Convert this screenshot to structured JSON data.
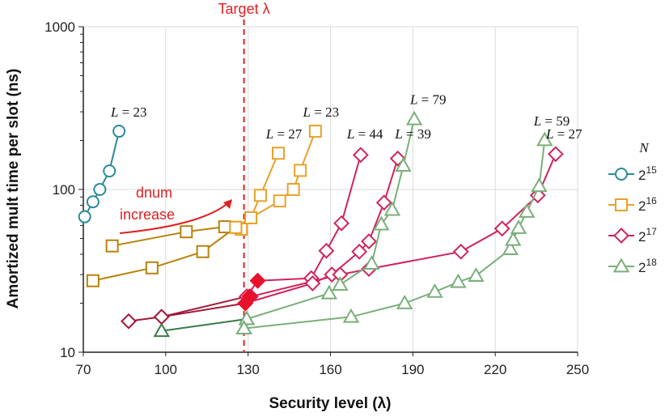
{
  "chart_data": {
    "type": "line",
    "xlabel": "Security level (λ)",
    "ylabel": "Amortized mult time per slot (ns)",
    "x_scale": "linear",
    "y_scale": "log",
    "xlim": [
      70,
      250
    ],
    "ylim": [
      10,
      1000
    ],
    "x_ticks": [
      70,
      100,
      130,
      160,
      190,
      220,
      250
    ],
    "y_ticks": [
      10,
      100,
      1000
    ],
    "x_tick_labels": [
      "70",
      "100",
      "130",
      "160",
      "190",
      "220",
      "250"
    ],
    "y_tick_labels": [
      "10",
      "100",
      "1000"
    ],
    "grid": true,
    "target_line": {
      "x": 128.5,
      "label": "Target λ",
      "color": "#e02020"
    },
    "legend": {
      "title": "N",
      "placement": "right",
      "entries": [
        {
          "base": "2",
          "exp": "15",
          "color": "#2a8a9a",
          "marker": "circle"
        },
        {
          "base": "2",
          "exp": "16",
          "color": "#e8a22a",
          "marker": "square"
        },
        {
          "base": "2",
          "exp": "17",
          "color": "#d0245a",
          "marker": "diamond"
        },
        {
          "base": "2",
          "exp": "18",
          "color": "#7aaf7a",
          "marker": "triangle"
        }
      ]
    },
    "series": [
      {
        "name": "N=2^15",
        "marker": "circle",
        "color": "#2a8a9a",
        "lines": [
          {
            "color": "#2a8a9a",
            "points": [
              [
                70.5,
                68
              ],
              [
                73.5,
                84
              ],
              [
                76,
                100
              ],
              [
                79.5,
                130
              ],
              [
                83,
                228
              ]
            ]
          }
        ],
        "filled_points": []
      },
      {
        "name": "N=2^16",
        "marker": "square",
        "color": "#e8a22a",
        "lines": [
          {
            "color": "#b8820a",
            "points": [
              [
                80.5,
                45
              ],
              [
                107.5,
                55
              ],
              [
                121.5,
                59
              ],
              [
                127.5,
                57
              ]
            ]
          },
          {
            "color": "#e8a22a",
            "points": [
              [
                127.5,
                57
              ],
              [
                131,
                67
              ],
              [
                134.5,
                92
              ],
              [
                141,
                167
              ]
            ]
          },
          {
            "color": "#b8820a",
            "points": [
              [
                73.5,
                27.5
              ],
              [
                95,
                33
              ],
              [
                113.5,
                41.5
              ],
              [
                125.5,
                58.5
              ]
            ]
          },
          {
            "color": "#e8a22a",
            "points": [
              [
                125.5,
                58.5
              ],
              [
                131,
                67
              ],
              [
                141.5,
                85
              ],
              [
                146.5,
                100
              ],
              [
                149,
                131
              ],
              [
                154.5,
                228
              ]
            ]
          }
        ],
        "filled_points": []
      },
      {
        "name": "N=2^17",
        "marker": "diamond",
        "color": "#d0245a",
        "lines": [
          {
            "color": "#a01a3a",
            "points": [
              [
                98.5,
                16.5
              ],
              [
                129.5,
                22
              ]
            ]
          },
          {
            "color": "#d0245a",
            "points": [
              [
                129.5,
                22
              ],
              [
                133.5,
                27.5
              ],
              [
                153,
                28.5
              ],
              [
                158.5,
                42
              ],
              [
                164,
                62
              ],
              [
                171,
                163
              ]
            ]
          },
          {
            "color": "#a01a3a",
            "points": [
              [
                86.5,
                15.5
              ],
              [
                98.5,
                16.5
              ],
              [
                129,
                20
              ]
            ]
          },
          {
            "color": "#d0245a",
            "points": [
              [
                129,
                20
              ],
              [
                153.5,
                26.5
              ],
              [
                160.5,
                30
              ],
              [
                170.5,
                41.5
              ],
              [
                174,
                48
              ],
              [
                179.5,
                83
              ],
              [
                184.5,
                155
              ]
            ]
          },
          {
            "color": "#d0245a",
            "points": [
              [
                131,
                22
              ],
              [
                163.5,
                30
              ],
              [
                174,
                32.5
              ],
              [
                207.5,
                41.5
              ],
              [
                222.5,
                57.5
              ],
              [
                235.5,
                92
              ],
              [
                242,
                165
              ]
            ]
          }
        ],
        "filled_points": [
          [
            129,
            20
          ],
          [
            130.5,
            22
          ],
          [
            133.5,
            27.5
          ]
        ]
      },
      {
        "name": "N=2^18",
        "marker": "triangle",
        "color": "#7aaf7a",
        "lines": [
          {
            "color": "#3a7a4a",
            "points": [
              [
                98.5,
                13.5
              ],
              [
                129.5,
                16
              ]
            ]
          },
          {
            "color": "#7aaf7a",
            "points": [
              [
                129.5,
                16
              ],
              [
                159.5,
                23
              ],
              [
                163.5,
                26
              ],
              [
                175,
                35
              ],
              [
                178.5,
                61
              ],
              [
                182.5,
                75
              ],
              [
                186.5,
                140
              ],
              [
                190.5,
                270
              ]
            ]
          },
          {
            "color": "#3a7a4a",
            "points": [
              [
                128.5,
                14
              ]
            ]
          },
          {
            "color": "#7aaf7a",
            "points": [
              [
                128.5,
                14
              ],
              [
                167.5,
                16.5
              ],
              [
                187,
                20
              ],
              [
                198,
                23.5
              ],
              [
                206.5,
                27
              ],
              [
                213,
                29.5
              ],
              [
                225.5,
                43
              ],
              [
                226.5,
                49
              ],
              [
                228.5,
                58
              ],
              [
                231.5,
                73
              ],
              [
                236,
                105
              ],
              [
                238,
                201
              ]
            ]
          }
        ],
        "filled_points": []
      }
    ],
    "annotations": [
      {
        "text": "L = 23",
        "x": 80,
        "y": 280
      },
      {
        "text": "L = 27",
        "x": 136.5,
        "y": 206
      },
      {
        "text": "L = 23",
        "x": 150,
        "y": 280
      },
      {
        "text": "L = 44",
        "x": 166,
        "y": 206
      },
      {
        "text": "L = 39",
        "x": 183.5,
        "y": 206
      },
      {
        "text": "L = 79",
        "x": 189,
        "y": 334
      },
      {
        "text": "L = 59",
        "x": 234,
        "y": 247
      },
      {
        "text": "L = 27",
        "x": 238.5,
        "y": 206
      }
    ],
    "arrow_annotation": {
      "line1": "dnum",
      "line2": "increase",
      "color": "#e02020"
    }
  }
}
